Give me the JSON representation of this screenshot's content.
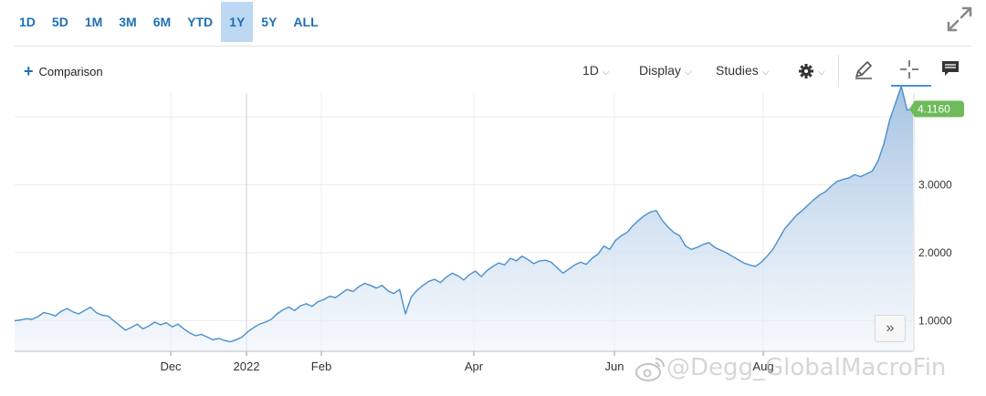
{
  "range_buttons": [
    {
      "label": "1D",
      "active": false
    },
    {
      "label": "5D",
      "active": false
    },
    {
      "label": "1M",
      "active": false
    },
    {
      "label": "3M",
      "active": false
    },
    {
      "label": "6M",
      "active": false
    },
    {
      "label": "YTD",
      "active": false
    },
    {
      "label": "1Y",
      "active": true
    },
    {
      "label": "5Y",
      "active": false
    },
    {
      "label": "ALL",
      "active": false
    }
  ],
  "toolbar": {
    "comparison_label": "Comparison",
    "interval_label": "1D",
    "display_label": "Display",
    "studies_label": "Studies"
  },
  "scroll_label": "»",
  "watermark": "@Degg_GlobalMacroFin",
  "colors": {
    "accent": "#1f6fb5",
    "line": "#4a8fce",
    "last_price_badge": "#6dbb5a"
  },
  "chart_data": {
    "type": "area",
    "x_ticks": [
      "Dec",
      "2022",
      "Feb",
      "Apr",
      "Jun",
      "Aug"
    ],
    "y_ticks": [
      "1.0000",
      "2.0000",
      "3.0000"
    ],
    "ylim": [
      0.55,
      4.35
    ],
    "last_price": "4.1160",
    "grid": true,
    "values": [
      1.0,
      1.01,
      1.03,
      1.02,
      1.06,
      1.12,
      1.1,
      1.07,
      1.14,
      1.18,
      1.13,
      1.1,
      1.15,
      1.2,
      1.12,
      1.08,
      1.07,
      1.0,
      0.93,
      0.86,
      0.9,
      0.95,
      0.88,
      0.92,
      0.98,
      0.94,
      0.97,
      0.91,
      0.95,
      0.88,
      0.82,
      0.78,
      0.8,
      0.76,
      0.72,
      0.74,
      0.71,
      0.69,
      0.72,
      0.76,
      0.84,
      0.9,
      0.95,
      0.98,
      1.02,
      1.1,
      1.16,
      1.2,
      1.15,
      1.22,
      1.25,
      1.21,
      1.28,
      1.31,
      1.36,
      1.34,
      1.4,
      1.46,
      1.43,
      1.5,
      1.55,
      1.52,
      1.48,
      1.52,
      1.44,
      1.4,
      1.46,
      1.1,
      1.35,
      1.45,
      1.52,
      1.58,
      1.61,
      1.56,
      1.64,
      1.7,
      1.66,
      1.6,
      1.68,
      1.73,
      1.65,
      1.74,
      1.8,
      1.85,
      1.82,
      1.92,
      1.88,
      1.95,
      1.9,
      1.84,
      1.88,
      1.89,
      1.86,
      1.78,
      1.7,
      1.76,
      1.82,
      1.86,
      1.83,
      1.92,
      1.98,
      2.1,
      2.05,
      2.18,
      2.25,
      2.3,
      2.4,
      2.48,
      2.55,
      2.6,
      2.62,
      2.48,
      2.38,
      2.3,
      2.25,
      2.1,
      2.05,
      2.08,
      2.12,
      2.15,
      2.08,
      2.04,
      2.0,
      1.95,
      1.9,
      1.85,
      1.82,
      1.8,
      1.86,
      1.95,
      2.05,
      2.2,
      2.35,
      2.45,
      2.55,
      2.62,
      2.7,
      2.78,
      2.85,
      2.9,
      2.98,
      3.05,
      3.08,
      3.1,
      3.15,
      3.12,
      3.16,
      3.2,
      3.35,
      3.6,
      3.95,
      4.2,
      4.45,
      4.1,
      4.116
    ]
  }
}
